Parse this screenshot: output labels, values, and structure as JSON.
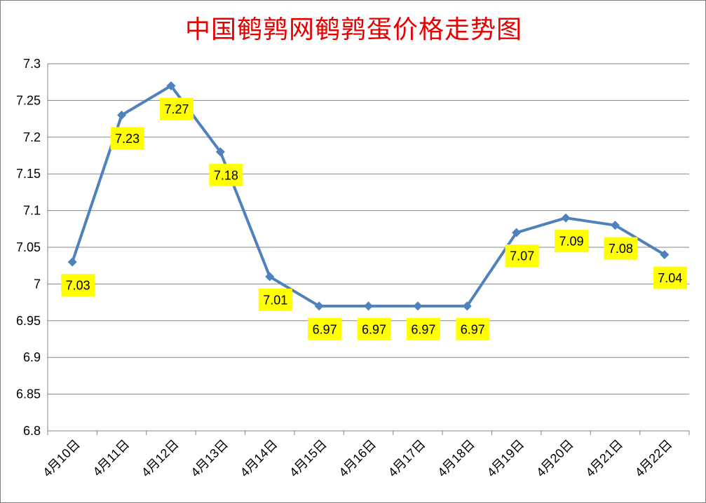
{
  "chart_data": {
    "type": "line",
    "title": "中国鹌鹑网鹌鹑蛋价格走势图",
    "categories": [
      "4月10日",
      "4月11日",
      "4月12日",
      "4月13日",
      "4月14日",
      "4月15日",
      "4月16日",
      "4月17日",
      "4月18日",
      "4月19日",
      "4月20日",
      "4月21日",
      "4月22日"
    ],
    "series": [
      {
        "values": [
          7.03,
          7.23,
          7.27,
          7.18,
          7.01,
          6.97,
          6.97,
          6.97,
          6.97,
          7.07,
          7.09,
          7.08,
          7.04
        ]
      }
    ],
    "data_labels": [
      "7.03",
      "7.23",
      "7.27",
      "7.18",
      "7.01",
      "6.97",
      "6.97",
      "6.97",
      "6.97",
      "7.07",
      "7.09",
      "7.08",
      "7.04"
    ],
    "yticks": [
      "6.8",
      "6.85",
      "6.9",
      "6.95",
      "7",
      "7.05",
      "7.1",
      "7.15",
      "7.2",
      "7.25",
      "7.3"
    ],
    "ylim": [
      6.8,
      7.3
    ],
    "grid": true,
    "legend": "none",
    "colors": {
      "line": "#4f81bd",
      "title": "#e60000",
      "label_background": "#ffff00",
      "grid": "#868686"
    }
  }
}
